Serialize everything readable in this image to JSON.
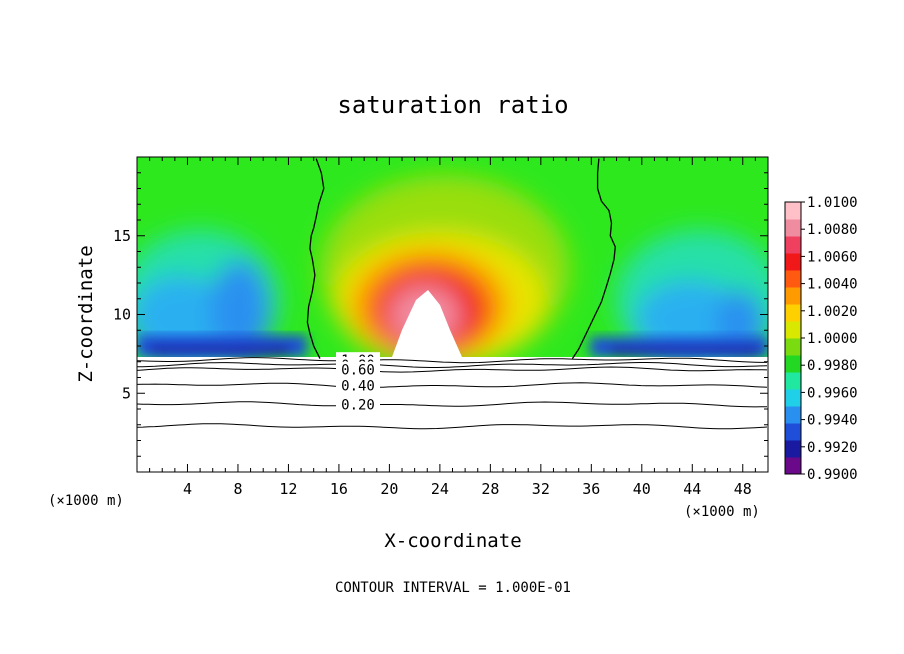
{
  "chart_data": {
    "type": "heatmap",
    "title": "saturation ratio",
    "xlabel": "X-coordinate",
    "ylabel": "Z-coordinate",
    "x_unit_label": "(×1000 m)",
    "y_unit_label": "(×1000 m)",
    "xlim": [
      0,
      50
    ],
    "ylim": [
      0,
      20
    ],
    "x_ticks": [
      4,
      8,
      12,
      16,
      20,
      24,
      28,
      32,
      36,
      40,
      44,
      48
    ],
    "y_ticks": [
      5,
      10,
      15
    ],
    "footer": "CONTOUR INTERVAL = 1.000E-01",
    "colorbar": {
      "levels": [
        "0.9900",
        "0.9920",
        "0.9940",
        "0.9960",
        "0.9980",
        "1.0000",
        "1.0020",
        "1.0040",
        "1.0060",
        "1.0080",
        "1.0100"
      ],
      "colors": [
        "#6a0a8a",
        "#1a1aa0",
        "#1f4fd8",
        "#2a90f0",
        "#20d0e8",
        "#20e8a0",
        "#22d822",
        "#7adc10",
        "#d8e800",
        "#ffd000",
        "#ff9a00",
        "#ff5a10",
        "#f01818",
        "#f04060",
        "#f08ca0",
        "#ffc0c8"
      ]
    },
    "contours": [
      {
        "label": "1.00",
        "z": 7.1
      },
      {
        "label": "0.80",
        "z": 6.8
      },
      {
        "label": "0.60",
        "z": 6.5
      },
      {
        "label": "0.40",
        "z": 5.5
      },
      {
        "label": "0.20",
        "z": 4.3
      },
      {
        "label": "",
        "z": 2.9
      }
    ],
    "boundary_z": 7.2,
    "clear_region_lines": [
      {
        "x": [
          14.2,
          14.6,
          14.8,
          14.4,
          14.2,
          14.0,
          13.8,
          13.7,
          13.9,
          14.1,
          13.9,
          13.6,
          13.5,
          13.7,
          14.0,
          14.5
        ],
        "z": [
          19.9,
          19.0,
          18.0,
          17.0,
          16.2,
          15.5,
          15.0,
          14.2,
          13.5,
          12.5,
          11.5,
          10.5,
          9.5,
          8.8,
          8.0,
          7.2
        ]
      },
      {
        "x": [
          36.6,
          36.5,
          36.5,
          36.8,
          37.4,
          37.6,
          37.5,
          37.9,
          37.8,
          37.5,
          37.2,
          36.8,
          36.2,
          35.6,
          35.0,
          34.5
        ],
        "z": [
          19.9,
          19.0,
          18.0,
          17.2,
          16.6,
          15.8,
          15.0,
          14.3,
          13.5,
          12.6,
          11.8,
          10.8,
          9.8,
          8.8,
          7.8,
          7.2
        ]
      }
    ]
  }
}
